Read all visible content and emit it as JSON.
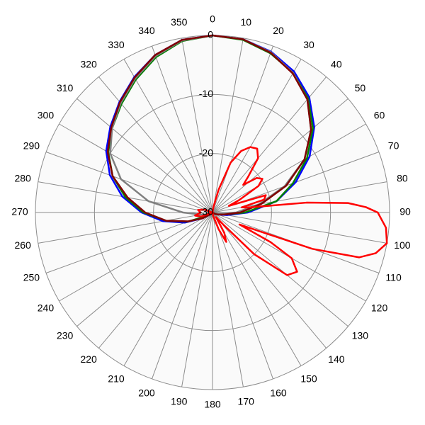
{
  "chart_data": {
    "type": "polar",
    "rlim": [
      -30,
      0
    ],
    "rticks": [
      0,
      -10,
      -20,
      -30
    ],
    "angle_ticks": [
      0,
      10,
      20,
      30,
      40,
      50,
      60,
      70,
      80,
      90,
      100,
      110,
      120,
      130,
      140,
      150,
      160,
      170,
      180,
      190,
      200,
      210,
      220,
      230,
      240,
      250,
      260,
      270,
      280,
      290,
      300,
      310,
      320,
      330,
      340,
      350
    ],
    "grid": true,
    "x": [
      0,
      10,
      20,
      30,
      40,
      50,
      60,
      70,
      80,
      90,
      100,
      110,
      120,
      130,
      140,
      150,
      160,
      170,
      180,
      190,
      200,
      210,
      220,
      230,
      240,
      250,
      260,
      270,
      280,
      290,
      300,
      310,
      320,
      330,
      340,
      350
    ],
    "series": [
      {
        "color": "#0000ff",
        "values": [
          0,
          -0.2,
          -1,
          -2.4,
          -4.5,
          -7.5,
          -11,
          -15,
          -19,
          -24,
          -27.5,
          -29,
          -30,
          -30,
          -30,
          -30,
          -30,
          -30,
          -30,
          -30,
          -30,
          -30,
          -30,
          -29.5,
          -28,
          -25,
          -21.5,
          -18,
          -14.5,
          -11.5,
          -9.2,
          -7.4,
          -5.5,
          -3.5,
          -1.6,
          -0.3
        ]
      },
      {
        "color": "#008000",
        "values": [
          0,
          -0.3,
          -1.3,
          -2.7,
          -4.8,
          -7.8,
          -11.5,
          -15.5,
          -19,
          -24.5,
          -28,
          -29.5,
          -30,
          -30,
          -30,
          -30,
          -30,
          -30,
          -30,
          -30,
          -30,
          -30,
          -30,
          -29.5,
          -28.5,
          -25.5,
          -22,
          -18.3,
          -15,
          -12,
          -9.6,
          -7.8,
          -6,
          -4,
          -2,
          -0.5
        ]
      },
      {
        "color": "#808080",
        "values": [
          0,
          -0.2,
          -1.1,
          -2.7,
          -5,
          -8.2,
          -12,
          -17,
          -22,
          -26,
          -29,
          -30,
          -30,
          -30,
          -30,
          -30,
          -30,
          -30,
          -30,
          -30,
          -30,
          -30,
          -30,
          -30,
          -29.5,
          -29,
          -28,
          -25,
          -19,
          -13.5,
          -10,
          -7.8,
          -5.8,
          -3.8,
          -1.8,
          -0.4
        ]
      },
      {
        "color": "#800000",
        "values": [
          0,
          -0.2,
          -1.2,
          -2.8,
          -5,
          -8.2,
          -12,
          -16.7,
          -21.6,
          -25.3,
          -28,
          -29,
          -29.5,
          -30,
          -30,
          -30,
          -30,
          -30,
          -30,
          -30,
          -30,
          -30,
          -30,
          -29.5,
          -28,
          -25.6,
          -22,
          -18.6,
          -15.4,
          -12,
          -9.5,
          -7.6,
          -5.6,
          -3.6,
          -1.6,
          -0.3
        ]
      },
      {
        "color": "#ff0000",
        "x": [
          0,
          10,
          15,
          20,
          25,
          30,
          35,
          40,
          45,
          48,
          52,
          56,
          60,
          65,
          68,
          72,
          76,
          80,
          82,
          84,
          86,
          88,
          90,
          95,
          100,
          104,
          107,
          110,
          112,
          114,
          117,
          120,
          125,
          130,
          135,
          138,
          142,
          150,
          155,
          160,
          170,
          180,
          200,
          230,
          250,
          260,
          270,
          280,
          290,
          310,
          340,
          350
        ],
        "values": [
          -30,
          -29,
          -26,
          -21,
          -18.5,
          -17.2,
          -16.8,
          -18,
          -21.5,
          -23,
          -20.5,
          -19.8,
          -21,
          -25,
          -27,
          -20.5,
          -21,
          -25,
          -24,
          -14,
          -7,
          -4,
          -2,
          -0.5,
          0,
          -1.5,
          -4,
          -12,
          -22,
          -25,
          -19,
          -14.5,
          -12.5,
          -13.5,
          -20,
          -27,
          -29,
          -26,
          -24.5,
          -27,
          -29.5,
          -30,
          -30,
          -30,
          -28,
          -27,
          -28,
          -27.5,
          -28.5,
          -30,
          -30,
          -30
        ]
      }
    ]
  }
}
